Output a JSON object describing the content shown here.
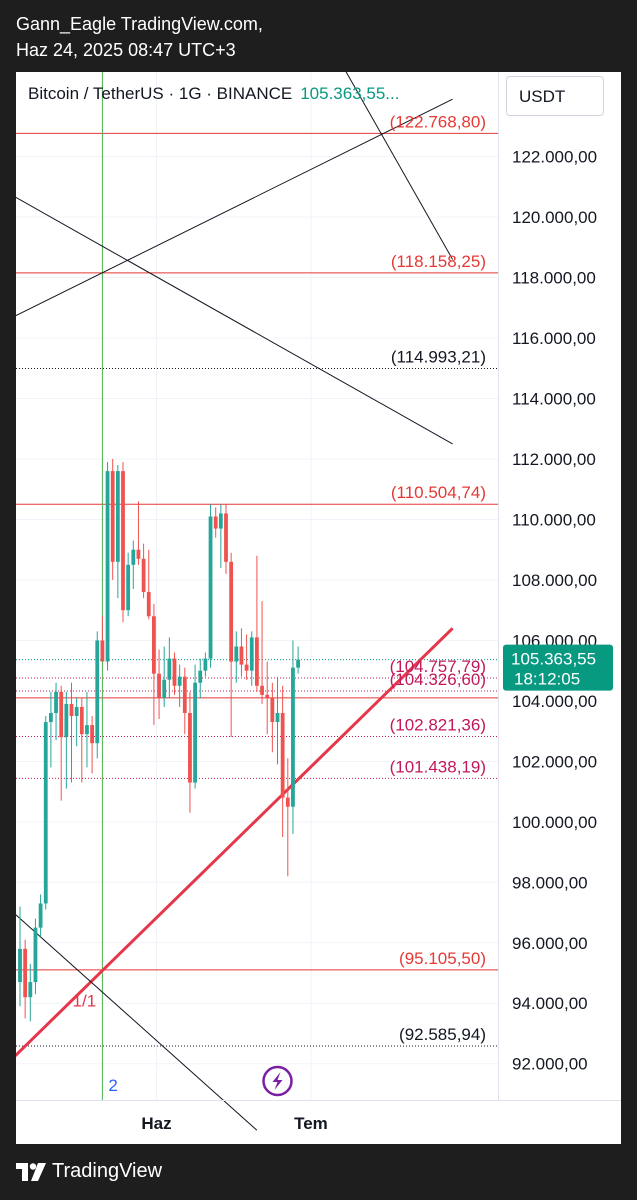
{
  "header": {
    "line1": "Gann_Eagle TradingView.com,",
    "line2": "Haz 24, 2025 08:47 UTC+3"
  },
  "symbol": {
    "name": "Bitcoin / TetherUS · 1G · BINANCE",
    "price": "105.363,55..."
  },
  "currency": "USDT",
  "footer": {
    "brand": "TradingView"
  },
  "colors": {
    "up": "#26a69a",
    "down": "#ef5350",
    "red_level": "#e53935",
    "magenta_level": "#c2185b",
    "trendline": "#e5364a",
    "time_marker": "#4caf50",
    "price_tag": "#089981",
    "lightning": "#7b1fa2"
  },
  "chart_data": {
    "type": "candlestick",
    "ylim": [
      90800,
      124800
    ],
    "y_ticks": [
      {
        "value": 122000,
        "label": "122.000,00"
      },
      {
        "value": 120000,
        "label": "120.000,00"
      },
      {
        "value": 118000,
        "label": "118.000,00"
      },
      {
        "value": 116000,
        "label": "116.000,00"
      },
      {
        "value": 114000,
        "label": "114.000,00"
      },
      {
        "value": 112000,
        "label": "112.000,00"
      },
      {
        "value": 110000,
        "label": "110.000,00"
      },
      {
        "value": 108000,
        "label": "108.000,00"
      },
      {
        "value": 106000,
        "label": "106.000,00"
      },
      {
        "value": 104000,
        "label": "104.000,00"
      },
      {
        "value": 102000,
        "label": "102.000,00"
      },
      {
        "value": 100000,
        "label": "100.000,00"
      },
      {
        "value": 98000,
        "label": "98.000,00"
      },
      {
        "value": 96000,
        "label": "96.000,00"
      },
      {
        "value": 94000,
        "label": "94.000,00"
      },
      {
        "value": 92000,
        "label": "92.000,00"
      }
    ],
    "x_labels": [
      {
        "index": 26.5,
        "label": "Haz"
      },
      {
        "index": 56.5,
        "label": "Tem"
      }
    ],
    "current_price": {
      "value": 105363.55,
      "label": "105.363,55",
      "countdown": "18:12:05"
    },
    "levels": [
      {
        "value": 122768.8,
        "label": "(122.768,80)",
        "color": "red",
        "style": "solid"
      },
      {
        "value": 118158.25,
        "label": "(118.158,25)",
        "color": "red",
        "style": "solid"
      },
      {
        "value": 114993.21,
        "label": "(114.993,21)",
        "color": "black",
        "style": "dotted"
      },
      {
        "value": 110504.74,
        "label": "(110.504,74)",
        "color": "red",
        "style": "solid"
      },
      {
        "value": 104757.79,
        "label": "(104.757,79)",
        "color": "magenta",
        "style": "dotted"
      },
      {
        "value": 104326.6,
        "label": "(104.326,60)",
        "color": "magenta",
        "style": "dotted"
      },
      {
        "value": 102821.36,
        "label": "(102.821,36)",
        "color": "magenta",
        "style": "dotted"
      },
      {
        "value": 101438.19,
        "label": "(101.438,19)",
        "color": "magenta",
        "style": "dotted"
      },
      {
        "value": 95105.5,
        "label": "(95.105,50)",
        "color": "red",
        "style": "solid"
      },
      {
        "value": 92585.94,
        "label": "(92.585,94)",
        "color": "black",
        "style": "dotted"
      }
    ],
    "plain_lines": [
      {
        "value": 104100,
        "color": "red"
      }
    ],
    "vertical_marker": {
      "index": 16,
      "label": "2"
    },
    "annotations": [
      {
        "text": "1/1",
        "index": 12.5,
        "value": 93900
      }
    ],
    "lightning_index": 50,
    "trendlines": [
      {
        "x1": -1.3,
        "y1": 92200,
        "x2": 84,
        "y2": 106400,
        "color": "red",
        "width": 3
      },
      {
        "x1": -1.3,
        "y1": 116700,
        "x2": 84,
        "y2": 123900,
        "color": "black",
        "width": 1
      },
      {
        "x1": -1.3,
        "y1": 120700,
        "x2": 84,
        "y2": 112500,
        "color": "black",
        "width": 1
      },
      {
        "x1": 62,
        "y1": 125200,
        "x2": 84,
        "y2": 118600,
        "color": "black",
        "width": 1
      },
      {
        "x1": -1.3,
        "y1": 97000,
        "x2": 46,
        "y2": 89800,
        "color": "black",
        "width": 1
      }
    ],
    "candles": [
      {
        "o": 94700,
        "h": 97200,
        "l": 93900,
        "c": 95800
      },
      {
        "o": 95800,
        "h": 96100,
        "l": 93500,
        "c": 94200
      },
      {
        "o": 94200,
        "h": 95300,
        "l": 93400,
        "c": 94700
      },
      {
        "o": 94700,
        "h": 96800,
        "l": 94300,
        "c": 96500
      },
      {
        "o": 96500,
        "h": 97600,
        "l": 96200,
        "c": 97300
      },
      {
        "o": 97300,
        "h": 103500,
        "l": 97100,
        "c": 103300
      },
      {
        "o": 103300,
        "h": 104300,
        "l": 101800,
        "c": 103600
      },
      {
        "o": 103600,
        "h": 104600,
        "l": 102700,
        "c": 104300
      },
      {
        "o": 104300,
        "h": 104500,
        "l": 100700,
        "c": 102800
      },
      {
        "o": 102800,
        "h": 104300,
        "l": 101100,
        "c": 103900
      },
      {
        "o": 103900,
        "h": 104600,
        "l": 101300,
        "c": 103500
      },
      {
        "o": 103500,
        "h": 104100,
        "l": 102500,
        "c": 103800
      },
      {
        "o": 103800,
        "h": 104100,
        "l": 101300,
        "c": 102900
      },
      {
        "o": 102900,
        "h": 104300,
        "l": 101800,
        "c": 103200
      },
      {
        "o": 103200,
        "h": 103500,
        "l": 101600,
        "c": 102600
      },
      {
        "o": 102600,
        "h": 106300,
        "l": 102100,
        "c": 106000
      },
      {
        "o": 106000,
        "h": 106800,
        "l": 105400,
        "c": 105300
      },
      {
        "o": 105300,
        "h": 111900,
        "l": 105000,
        "c": 111600
      },
      {
        "o": 111600,
        "h": 112000,
        "l": 108000,
        "c": 108600
      },
      {
        "o": 108600,
        "h": 111800,
        "l": 107400,
        "c": 111600
      },
      {
        "o": 111600,
        "h": 111900,
        "l": 106600,
        "c": 107000
      },
      {
        "o": 107000,
        "h": 108900,
        "l": 106800,
        "c": 108500
      },
      {
        "o": 108500,
        "h": 109300,
        "l": 107700,
        "c": 109000
      },
      {
        "o": 109000,
        "h": 110600,
        "l": 108500,
        "c": 108700
      },
      {
        "o": 108700,
        "h": 109200,
        "l": 107400,
        "c": 107600
      },
      {
        "o": 107600,
        "h": 109000,
        "l": 106700,
        "c": 106800
      },
      {
        "o": 106800,
        "h": 107200,
        "l": 103200,
        "c": 104900
      },
      {
        "o": 104900,
        "h": 105700,
        "l": 103400,
        "c": 104100
      },
      {
        "o": 104100,
        "h": 105800,
        "l": 103800,
        "c": 104700
      },
      {
        "o": 104700,
        "h": 106100,
        "l": 104100,
        "c": 105400
      },
      {
        "o": 105400,
        "h": 105600,
        "l": 104200,
        "c": 104500
      },
      {
        "o": 104500,
        "h": 105200,
        "l": 103800,
        "c": 104800
      },
      {
        "o": 104800,
        "h": 105100,
        "l": 102900,
        "c": 103600
      },
      {
        "o": 103600,
        "h": 104300,
        "l": 100300,
        "c": 101300
      },
      {
        "o": 101300,
        "h": 105200,
        "l": 101100,
        "c": 104600
      },
      {
        "o": 104600,
        "h": 105400,
        "l": 104100,
        "c": 105000
      },
      {
        "o": 105000,
        "h": 105600,
        "l": 104800,
        "c": 105400
      },
      {
        "o": 105400,
        "h": 110500,
        "l": 105100,
        "c": 110100
      },
      {
        "o": 110100,
        "h": 110400,
        "l": 109400,
        "c": 109700
      },
      {
        "o": 109700,
        "h": 110500,
        "l": 108400,
        "c": 110200
      },
      {
        "o": 110200,
        "h": 110500,
        "l": 108200,
        "c": 108600
      },
      {
        "o": 108600,
        "h": 108900,
        "l": 102800,
        "c": 105300
      },
      {
        "o": 105300,
        "h": 106300,
        "l": 104600,
        "c": 105800
      },
      {
        "o": 105800,
        "h": 106400,
        "l": 104800,
        "c": 105200
      },
      {
        "o": 105200,
        "h": 106200,
        "l": 104700,
        "c": 105000
      },
      {
        "o": 105000,
        "h": 106300,
        "l": 104500,
        "c": 106100
      },
      {
        "o": 106100,
        "h": 108800,
        "l": 104300,
        "c": 104500
      },
      {
        "o": 104500,
        "h": 107300,
        "l": 103900,
        "c": 104200
      },
      {
        "o": 104200,
        "h": 105300,
        "l": 102900,
        "c": 104100
      },
      {
        "o": 104100,
        "h": 104600,
        "l": 102300,
        "c": 103300
      },
      {
        "o": 103300,
        "h": 104800,
        "l": 101900,
        "c": 103600
      },
      {
        "o": 103600,
        "h": 104500,
        "l": 99500,
        "c": 100800
      },
      {
        "o": 100800,
        "h": 102100,
        "l": 98200,
        "c": 100500
      },
      {
        "o": 100500,
        "h": 106000,
        "l": 99600,
        "c": 105100
      },
      {
        "o": 105100,
        "h": 105800,
        "l": 104900,
        "c": 105363.55
      }
    ]
  }
}
